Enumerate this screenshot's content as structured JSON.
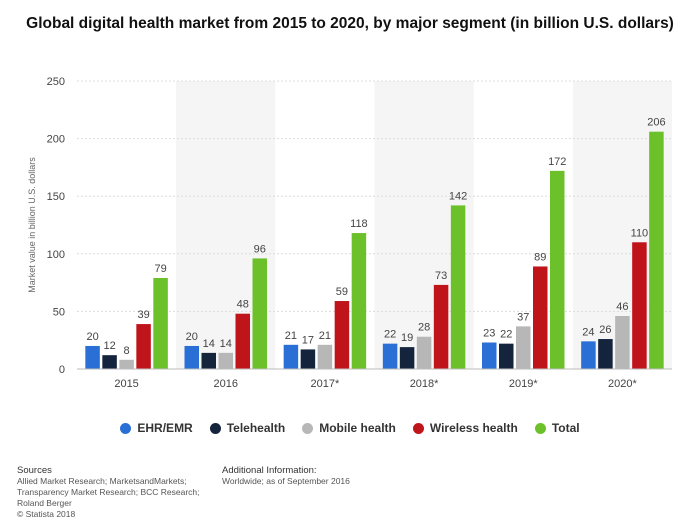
{
  "title": "Global digital health market from 2015 to 2020, by major segment (in billion U.S. dollars)",
  "colors": {
    "EHR/EMR": "#2a6fd6",
    "Telehealth": "#14243d",
    "Mobile health": "#b7b7b7",
    "Wireless health": "#c0141b",
    "Total": "#6cc12a"
  },
  "chart_data": {
    "type": "bar",
    "categories": [
      "2015",
      "2016",
      "2017*",
      "2018*",
      "2019*",
      "2020*"
    ],
    "series": [
      {
        "name": "EHR/EMR",
        "values": [
          20,
          20,
          21,
          22,
          23,
          24
        ]
      },
      {
        "name": "Telehealth",
        "values": [
          12,
          14,
          17,
          19,
          22,
          26
        ]
      },
      {
        "name": "Mobile health",
        "values": [
          8,
          14,
          21,
          28,
          37,
          46
        ]
      },
      {
        "name": "Wireless health",
        "values": [
          39,
          48,
          59,
          73,
          89,
          110
        ]
      },
      {
        "name": "Total",
        "values": [
          79,
          96,
          118,
          142,
          172,
          206
        ]
      }
    ],
    "ylabel": "Market value in billion U.S. dollars",
    "ylim": [
      0,
      250
    ],
    "yticks": [
      0,
      50,
      100,
      150,
      200,
      250
    ],
    "grid": true,
    "legend": "bottom"
  },
  "footer": {
    "sources_heading": "Sources",
    "sources_lines": [
      "Allied Market Research; MarketsandMarkets;",
      "Transparency Market Research; BCC Research;",
      "Roland Berger",
      "© Statista 2018"
    ],
    "additional_heading": "Additional Information:",
    "additional_text": "Worldwide; as of September 2016"
  }
}
